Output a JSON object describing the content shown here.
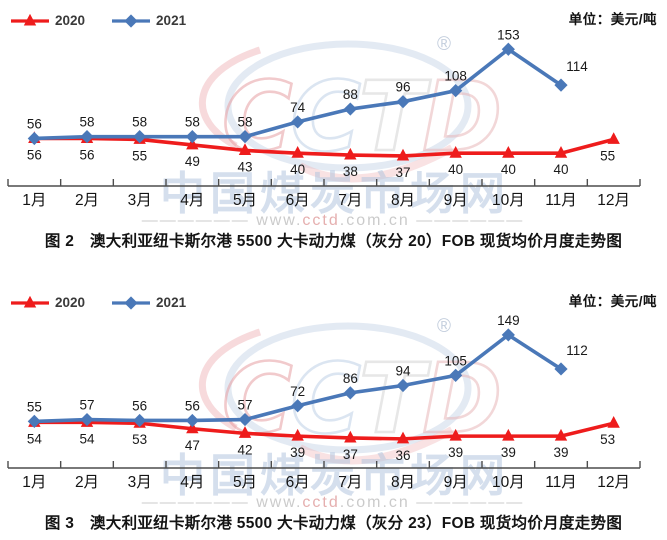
{
  "watermark": {
    "logo_letters": [
      "C",
      "C",
      "T",
      "D"
    ],
    "registered_mark": "®",
    "site_name_cn": "中国煤炭市场网",
    "site_url_prefix": "—————— www.",
    "site_url_mid": "cctd",
    "site_url_suffix": ".com.cn ——————",
    "colors": {
      "letter_colors": [
        "#e79fa3",
        "#bfd0e6",
        "#d4d4d4",
        "#e8b7ba"
      ],
      "ellipse_blue": "#ccd9ea",
      "arc_red": "#f0b6b9",
      "cn_text": "#b3c6df",
      "url_gray": "#c6c6c6",
      "url_red": "#e3a7a7",
      "reg_gray": "#b0bed2"
    }
  },
  "axis": {
    "line_color": "#4d4d4d",
    "label_color": "#141414"
  },
  "chart_data": [
    {
      "type": "line",
      "figure_label": "图 2",
      "title": "图 2　澳大利亚纽卡斯尔港 5500 大卡动力煤（灰分 20）FOB 现货均价月度走势图",
      "unit": "单位：美元/吨",
      "xlabel": "",
      "ylabel": "美元/吨",
      "ylim": [
        0,
        175
      ],
      "grid": false,
      "legend_position": "top-left",
      "categories": [
        "1月",
        "2月",
        "3月",
        "4月",
        "5月",
        "6月",
        "7月",
        "8月",
        "9月",
        "10月",
        "11月",
        "12月"
      ],
      "series": [
        {
          "name": "2020",
          "color": "#ee1c1c",
          "marker": "triangle",
          "label_position": "below",
          "values": [
            56,
            56,
            55,
            49,
            43,
            40,
            38,
            37,
            40,
            40,
            40,
            55
          ]
        },
        {
          "name": "2021",
          "color": "#4a78b8",
          "marker": "diamond",
          "label_position": "above",
          "values": [
            56,
            58,
            58,
            58,
            58,
            74,
            88,
            96,
            108,
            153,
            114
          ]
        }
      ]
    },
    {
      "type": "line",
      "figure_label": "图 3",
      "title": "图 3　澳大利亚纽卡斯尔港 5500 大卡动力煤（灰分 23）FOB 现货均价月度走势图",
      "unit": "单位：美元/吨",
      "xlabel": "",
      "ylabel": "美元/吨",
      "ylim": [
        0,
        175
      ],
      "grid": false,
      "legend_position": "top-left",
      "categories": [
        "1月",
        "2月",
        "3月",
        "4月",
        "5月",
        "6月",
        "7月",
        "8月",
        "9月",
        "10月",
        "11月",
        "12月"
      ],
      "series": [
        {
          "name": "2020",
          "color": "#ee1c1c",
          "marker": "triangle",
          "label_position": "below",
          "values": [
            54,
            54,
            53,
            47,
            42,
            39,
            37,
            36,
            39,
            39,
            39,
            53
          ]
        },
        {
          "name": "2021",
          "color": "#4a78b8",
          "marker": "diamond",
          "label_position": "above",
          "values": [
            55,
            57,
            56,
            56,
            57,
            72,
            86,
            94,
            105,
            149,
            112
          ]
        }
      ]
    }
  ]
}
